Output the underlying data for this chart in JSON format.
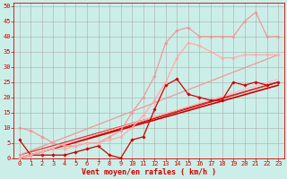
{
  "background_color": "#cceee8",
  "grid_color": "#aaaaaa",
  "xlabel": "Vent moyen/en rafales ( km/h )",
  "xlabel_color": "#cc0000",
  "tick_color": "#cc0000",
  "xlim": [
    -0.5,
    23.5
  ],
  "ylim": [
    0,
    51
  ],
  "xticks": [
    0,
    1,
    2,
    3,
    4,
    5,
    6,
    7,
    8,
    9,
    10,
    11,
    12,
    13,
    14,
    15,
    16,
    17,
    18,
    19,
    20,
    21,
    22,
    23
  ],
  "yticks": [
    0,
    5,
    10,
    15,
    20,
    25,
    30,
    35,
    40,
    45,
    50
  ],
  "series": [
    {
      "x": [
        0,
        1,
        2,
        3,
        4,
        5,
        6,
        7,
        8,
        9,
        10,
        11,
        12,
        13,
        14,
        15,
        16,
        17,
        18,
        19,
        20,
        21,
        22,
        23
      ],
      "y": [
        6,
        1,
        1,
        1,
        1,
        2,
        3,
        4,
        1,
        0,
        6,
        7,
        16,
        24,
        26,
        21,
        20,
        19,
        19,
        25,
        24,
        25,
        24,
        25
      ],
      "color": "#cc0000",
      "lw": 0.9,
      "marker": "D",
      "ms": 1.8
    },
    {
      "x": [
        0,
        23
      ],
      "y": [
        0,
        24
      ],
      "color": "#cc0000",
      "lw": 1.2,
      "marker": null,
      "ms": 0
    },
    {
      "x": [
        0,
        23
      ],
      "y": [
        0,
        25
      ],
      "color": "#cc0000",
      "lw": 0.9,
      "marker": null,
      "ms": 0
    },
    {
      "x": [
        0,
        23
      ],
      "y": [
        1,
        25
      ],
      "color": "#dd3333",
      "lw": 0.9,
      "marker": null,
      "ms": 0
    },
    {
      "x": [
        0,
        1,
        2,
        3,
        4,
        5,
        6,
        7,
        8,
        9,
        10,
        11,
        12,
        13,
        14,
        15,
        16,
        17,
        18,
        19,
        20,
        21,
        22,
        23
      ],
      "y": [
        10,
        9,
        7,
        5,
        4,
        4,
        5,
        5,
        7,
        9,
        15,
        20,
        27,
        38,
        42,
        43,
        40,
        40,
        40,
        40,
        45,
        48,
        40,
        40
      ],
      "color": "#ee9999",
      "lw": 0.9,
      "marker": "D",
      "ms": 1.8
    },
    {
      "x": [
        0,
        1,
        2,
        3,
        4,
        5,
        6,
        7,
        8,
        9,
        10,
        11,
        12,
        13,
        14,
        15,
        16,
        17,
        18,
        19,
        20,
        21,
        22,
        23
      ],
      "y": [
        0,
        1,
        2,
        3,
        3,
        4,
        5,
        5,
        6,
        7,
        10,
        14,
        19,
        25,
        33,
        38,
        37,
        35,
        33,
        33,
        34,
        34,
        34,
        34
      ],
      "color": "#ffaaaa",
      "lw": 0.9,
      "marker": "D",
      "ms": 1.8
    },
    {
      "x": [
        0,
        23
      ],
      "y": [
        1,
        34
      ],
      "color": "#ee9999",
      "lw": 0.9,
      "marker": null,
      "ms": 0
    },
    {
      "x": [
        0,
        23
      ],
      "y": [
        0,
        26
      ],
      "color": "#ffbbbb",
      "lw": 0.9,
      "marker": null,
      "ms": 0
    }
  ]
}
